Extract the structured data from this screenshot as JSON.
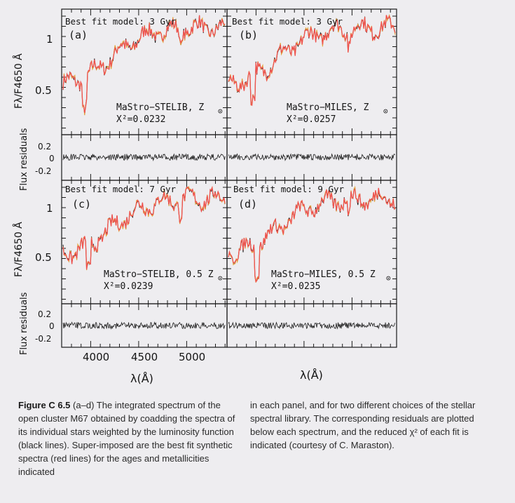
{
  "figure": {
    "ylabel_top": "Fλ/F4650 Å",
    "ylabel_resid": "Flux residuals",
    "xlabel": "λ(Å)",
    "x_ticks": [
      "4000",
      "4500",
      "5000"
    ],
    "flux_ticks": [
      "1",
      "0.5"
    ],
    "resid_ticks": [
      "0.2",
      "0",
      "-0.2"
    ],
    "panels": [
      {
        "letter": "(a)",
        "best_fit": "Best fit model: 3 Gyr",
        "library": "MaStro−STELIB, Z",
        "chi2": "X²=0.0232"
      },
      {
        "letter": "(b)",
        "best_fit": "Best fit model: 3 Gyr",
        "library": "MaStro−MILES, Z",
        "chi2": "X²=0.0257"
      },
      {
        "letter": "(c)",
        "best_fit": "Best fit model: 7 Gyr",
        "library": "MaStro−STELIB, 0.5 Z",
        "chi2": "X²=0.0239"
      },
      {
        "letter": "(d)",
        "best_fit": "Best fit model: 9 Gyr",
        "library": "MaStro−MILES, 0.5 Z",
        "chi2": "X²=0.0235"
      }
    ]
  },
  "caption": {
    "label": "Figure C 6.5",
    "left_text": "(a–d) The integrated spectrum of the open cluster M67 obtained by coadding the spectra of its individual stars weighted by the luminosity function (black lines). Super-imposed are the best fit synthetic spectra (red lines) for the ages and metallicities indicated",
    "right_text": "in each panel, and for two different choices of the stellar spectral library. The corresponding residuals are plotted below each spectrum, and the reduced χ² of each fit is indicated (courtesy of C. Maraston)."
  },
  "colors": {
    "observed": "#1a1a1a",
    "model": "#f0524f",
    "model_alt": "#e3a33a",
    "axis": "#1a1a1a"
  }
}
